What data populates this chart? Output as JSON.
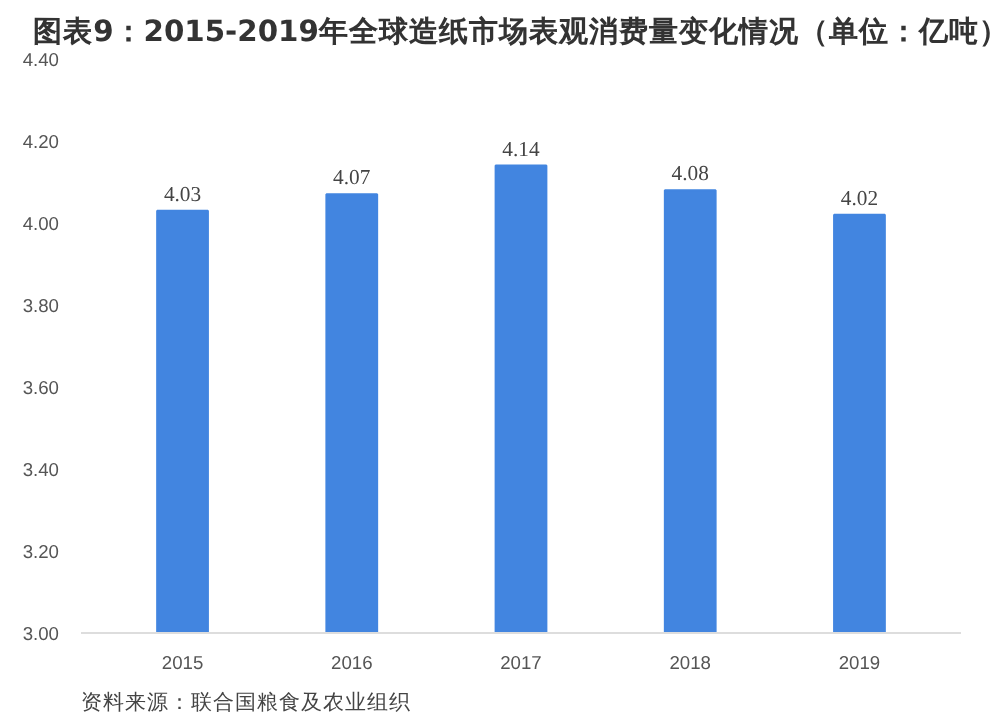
{
  "chart_data": {
    "type": "bar",
    "title": "图表9：2015-2019年全球造纸市场表观消费量变化情况（单位：亿吨）",
    "categories": [
      "2015",
      "2016",
      "2017",
      "2018",
      "2019"
    ],
    "values": [
      4.03,
      4.07,
      4.14,
      4.08,
      4.02
    ],
    "color": "#4285e0",
    "ylim": [
      3.0,
      4.4
    ],
    "yticks": [
      {
        "value": 3.0,
        "label": "3.00"
      },
      {
        "value": 3.2,
        "label": "3.20"
      },
      {
        "value": 3.4,
        "label": "3.40"
      },
      {
        "value": 3.6,
        "label": "3.60"
      },
      {
        "value": 3.8,
        "label": "3.80"
      },
      {
        "value": 4.0,
        "label": "4.00"
      },
      {
        "value": 4.2,
        "label": "4.20"
      },
      {
        "value": 4.4,
        "label": "4.40"
      }
    ],
    "data_labels": true,
    "grid": false,
    "annotations": [
      "资料来源：联合国粮食及农业组织"
    ]
  }
}
